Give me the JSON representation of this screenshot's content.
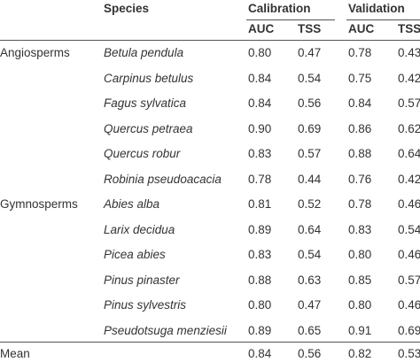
{
  "table": {
    "header": {
      "species": "Species",
      "groups": [
        "Calibration",
        "Validation"
      ],
      "metrics": [
        "AUC",
        "TSS",
        "AUC",
        "TSS"
      ]
    },
    "rows": [
      {
        "group": "Angiosperms",
        "species": "Betula pendula",
        "cells": [
          "0.80",
          "0.47",
          "0.78",
          "0.43"
        ]
      },
      {
        "species": "Carpinus betulus",
        "cells": [
          "0.84",
          "0.54",
          "0.75",
          "0.42"
        ]
      },
      {
        "species": "Fagus sylvatica",
        "cells": [
          "0.84",
          "0.56",
          "0.84",
          "0.57"
        ]
      },
      {
        "species": "Quercus petraea",
        "cells": [
          "0.90",
          "0.69",
          "0.86",
          "0.62"
        ]
      },
      {
        "species": "Quercus robur",
        "cells": [
          "0.83",
          "0.57",
          "0.88",
          "0.64"
        ]
      },
      {
        "species": "Robinia pseudoacacia",
        "cells": [
          "0.78",
          "0.44",
          "0.76",
          "0.42"
        ]
      },
      {
        "group": "Gymnosperms",
        "species": "Abies alba",
        "cells": [
          "0.81",
          "0.52",
          "0.78",
          "0.46"
        ]
      },
      {
        "species": "Larix decidua",
        "cells": [
          "0.89",
          "0.64",
          "0.83",
          "0.54"
        ]
      },
      {
        "species": "Picea abies",
        "cells": [
          "0.83",
          "0.54",
          "0.80",
          "0.46"
        ]
      },
      {
        "species": "Pinus pinaster",
        "cells": [
          "0.88",
          "0.63",
          "0.85",
          "0.57"
        ]
      },
      {
        "species": "Pinus sylvestris",
        "cells": [
          "0.80",
          "0.47",
          "0.80",
          "0.46"
        ]
      },
      {
        "species": "Pseudotsuga menziesii",
        "cells": [
          "0.89",
          "0.65",
          "0.91",
          "0.69"
        ]
      },
      {
        "group": "Mean",
        "cells": [
          "0.84",
          "0.56",
          "0.82",
          "0.53"
        ]
      }
    ]
  }
}
